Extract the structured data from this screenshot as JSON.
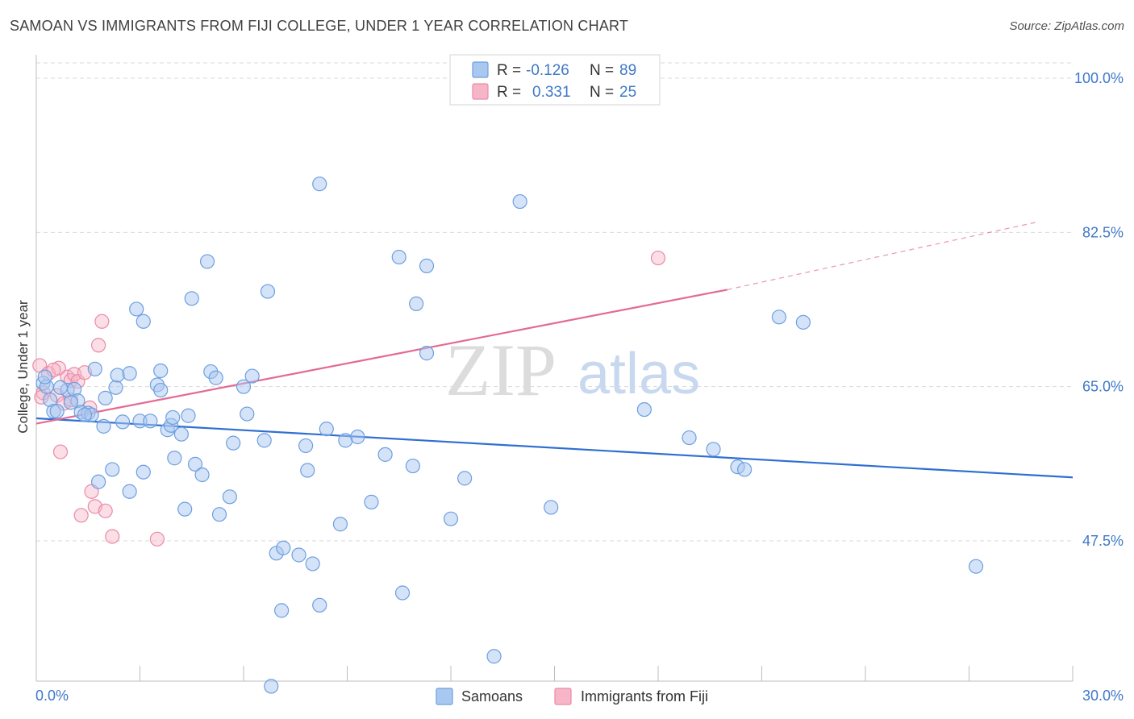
{
  "header": {
    "title": "SAMOAN VS IMMIGRANTS FROM FIJI COLLEGE, UNDER 1 YEAR CORRELATION CHART",
    "source": "Source: ZipAtlas.com"
  },
  "watermark": {
    "zip": "ZIP",
    "atlas": "atlas"
  },
  "legend_top": {
    "rows": [
      {
        "r_label": "R =",
        "r_value": "-0.126",
        "n_label": "N =",
        "n_value": "89"
      },
      {
        "r_label": "R =",
        "r_value": "0.331",
        "n_label": "N =",
        "n_value": "25"
      }
    ]
  },
  "colors": {
    "blue_fill": "#a9c8f0",
    "blue_stroke": "#6d9fe0",
    "blue_line": "#2f6fd1",
    "pink_fill": "#f7b6c8",
    "pink_stroke": "#ea8aa8",
    "pink_line": "#e46a94",
    "axis_text": "#3f78c9",
    "grid": "#d9d9d9"
  },
  "chart_data": {
    "type": "scatter",
    "title": "SAMOAN VS IMMIGRANTS FROM FIJI COLLEGE, UNDER 1 YEAR CORRELATION CHART",
    "xlabel": "",
    "ylabel": "College, Under 1 year",
    "xlim": [
      0,
      30
    ],
    "ylim": [
      30.5,
      103
    ],
    "x_tick_labels": [
      "0.0%",
      "30.0%"
    ],
    "y_ticks": [
      47.5,
      65.0,
      82.5,
      100.0
    ],
    "y_tick_labels": [
      "47.5%",
      "65.0%",
      "82.5%",
      "100.0%"
    ],
    "grid": true,
    "legend_position": "bottom",
    "series": [
      {
        "name": "Samoans",
        "r": -0.126,
        "n": 89,
        "trend": {
          "x": [
            0.0,
            30.0
          ],
          "y": [
            61.4,
            54.7
          ]
        },
        "points": [
          [
            0.2,
            65.4
          ],
          [
            0.3,
            65.0
          ],
          [
            0.4,
            63.5
          ],
          [
            0.5,
            62.2
          ],
          [
            0.6,
            62.2
          ],
          [
            0.9,
            64.6
          ],
          [
            1.1,
            64.7
          ],
          [
            1.2,
            63.4
          ],
          [
            1.3,
            62.1
          ],
          [
            1.5,
            62.0
          ],
          [
            1.6,
            61.8
          ],
          [
            1.7,
            67.0
          ],
          [
            1.8,
            54.2
          ],
          [
            1.95,
            60.5
          ],
          [
            2.0,
            63.7
          ],
          [
            2.2,
            55.6
          ],
          [
            2.3,
            64.9
          ],
          [
            2.35,
            66.3
          ],
          [
            2.5,
            61.0
          ],
          [
            2.7,
            66.5
          ],
          [
            2.7,
            53.1
          ],
          [
            2.9,
            73.8
          ],
          [
            3.0,
            61.1
          ],
          [
            3.1,
            72.4
          ],
          [
            3.1,
            55.3
          ],
          [
            3.3,
            61.1
          ],
          [
            3.5,
            65.2
          ],
          [
            3.6,
            64.6
          ],
          [
            3.6,
            66.8
          ],
          [
            3.8,
            60.1
          ],
          [
            3.9,
            60.6
          ],
          [
            3.95,
            61.5
          ],
          [
            4.0,
            56.9
          ],
          [
            4.2,
            59.6
          ],
          [
            4.3,
            51.1
          ],
          [
            4.4,
            61.7
          ],
          [
            4.5,
            75.0
          ],
          [
            4.6,
            56.2
          ],
          [
            4.8,
            55.0
          ],
          [
            4.95,
            79.2
          ],
          [
            5.05,
            66.7
          ],
          [
            5.2,
            66.0
          ],
          [
            5.3,
            50.5
          ],
          [
            5.6,
            52.5
          ],
          [
            5.7,
            58.6
          ],
          [
            6.0,
            65.0
          ],
          [
            6.1,
            61.9
          ],
          [
            6.25,
            66.2
          ],
          [
            6.6,
            58.9
          ],
          [
            6.7,
            75.8
          ],
          [
            6.8,
            31.0
          ],
          [
            6.95,
            46.1
          ],
          [
            7.1,
            39.6
          ],
          [
            7.15,
            46.7
          ],
          [
            7.6,
            45.9
          ],
          [
            7.8,
            58.3
          ],
          [
            7.85,
            55.5
          ],
          [
            8.0,
            44.9
          ],
          [
            8.2,
            88.0
          ],
          [
            8.2,
            40.2
          ],
          [
            8.4,
            60.2
          ],
          [
            8.8,
            49.4
          ],
          [
            8.95,
            58.9
          ],
          [
            9.3,
            59.3
          ],
          [
            9.7,
            51.9
          ],
          [
            10.1,
            57.3
          ],
          [
            10.5,
            79.7
          ],
          [
            10.6,
            41.6
          ],
          [
            10.9,
            56.0
          ],
          [
            11.0,
            74.4
          ],
          [
            11.3,
            68.8
          ],
          [
            11.3,
            78.7
          ],
          [
            12.0,
            50.0
          ],
          [
            12.4,
            54.6
          ],
          [
            13.25,
            34.4
          ],
          [
            14.0,
            86.0
          ],
          [
            14.9,
            51.3
          ],
          [
            17.6,
            62.4
          ],
          [
            18.9,
            59.2
          ],
          [
            19.6,
            57.9
          ],
          [
            20.3,
            55.9
          ],
          [
            20.5,
            55.6
          ],
          [
            21.5,
            72.9
          ],
          [
            22.2,
            72.3
          ],
          [
            27.2,
            44.6
          ],
          [
            0.25,
            66.1
          ],
          [
            0.7,
            64.9
          ],
          [
            1.4,
            61.8
          ],
          [
            1.0,
            63.2
          ]
        ]
      },
      {
        "name": "Immigrants from Fiji",
        "r": 0.331,
        "n": 25,
        "trend": {
          "x": [
            0.0,
            20.0
          ],
          "y": [
            60.8,
            76.0
          ]
        },
        "trend_dashed": {
          "x": [
            20.0,
            29.0
          ],
          "y": [
            76.0,
            83.7
          ]
        },
        "points": [
          [
            0.1,
            67.4
          ],
          [
            0.2,
            64.3
          ],
          [
            0.35,
            66.5
          ],
          [
            0.6,
            64.0
          ],
          [
            0.65,
            67.1
          ],
          [
            0.7,
            57.6
          ],
          [
            0.8,
            63.1
          ],
          [
            0.9,
            66.1
          ],
          [
            1.0,
            65.7
          ],
          [
            1.1,
            66.4
          ],
          [
            1.2,
            65.6
          ],
          [
            1.3,
            50.4
          ],
          [
            1.4,
            66.6
          ],
          [
            1.55,
            62.6
          ],
          [
            1.6,
            53.1
          ],
          [
            1.7,
            51.4
          ],
          [
            1.8,
            69.7
          ],
          [
            1.9,
            72.4
          ],
          [
            2.0,
            50.9
          ],
          [
            2.2,
            48.0
          ],
          [
            3.5,
            47.7
          ],
          [
            18.0,
            79.6
          ],
          [
            0.15,
            63.8
          ],
          [
            1.0,
            63.5
          ],
          [
            0.5,
            66.9
          ]
        ]
      }
    ]
  },
  "legend_bottom": {
    "items": [
      {
        "label": "Samoans"
      },
      {
        "label": "Immigrants from Fiji"
      }
    ]
  }
}
